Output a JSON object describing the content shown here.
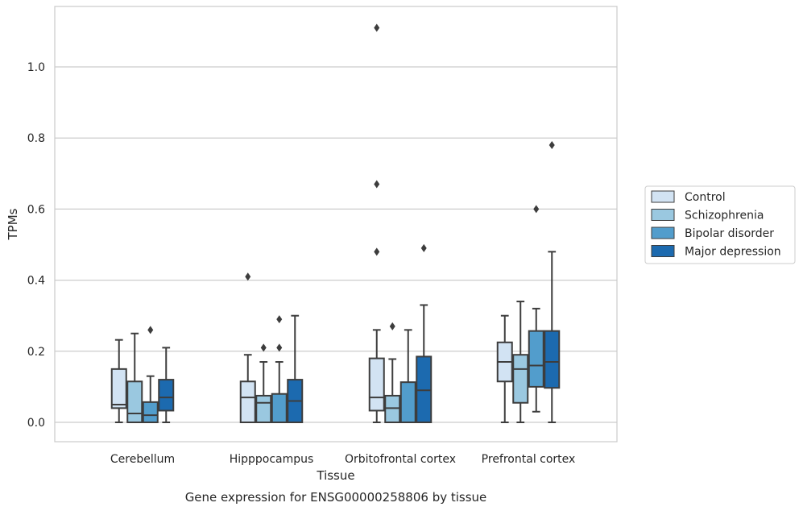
{
  "caption": "Gene expression for ENSG00000258806 by tissue",
  "chart_data": {
    "type": "box",
    "xlabel": "Tissue",
    "ylabel": "TPMs",
    "ylim": [
      -0.055,
      1.17
    ],
    "yticks": [
      0.0,
      0.2,
      0.4,
      0.6,
      0.8,
      1.0
    ],
    "ytick_labels": [
      "0.0",
      "0.2",
      "0.4",
      "0.6",
      "0.8",
      "1.0"
    ],
    "grid": "horizontal",
    "legend_position": "right",
    "categories": [
      "Cerebellum",
      "Hipppocampus",
      "Orbitofrontal cortex",
      "Prefrontal cortex"
    ],
    "series": [
      {
        "name": "Control",
        "color": "#d2e3f3",
        "boxes": [
          {
            "whisker_low": 0.0,
            "q1": 0.04,
            "median": 0.05,
            "q3": 0.15,
            "whisker_high": 0.232,
            "outliers": []
          },
          {
            "whisker_low": 0.0,
            "q1": 0.0,
            "median": 0.07,
            "q3": 0.115,
            "whisker_high": 0.19,
            "outliers": [
              0.41
            ]
          },
          {
            "whisker_low": 0.0,
            "q1": 0.033,
            "median": 0.07,
            "q3": 0.18,
            "whisker_high": 0.26,
            "outliers": [
              0.48,
              0.67,
              1.11
            ]
          },
          {
            "whisker_low": 0.0,
            "q1": 0.115,
            "median": 0.17,
            "q3": 0.225,
            "whisker_high": 0.3,
            "outliers": []
          }
        ]
      },
      {
        "name": "Schizophrenia",
        "color": "#9ac8e0",
        "boxes": [
          {
            "whisker_low": 0.0,
            "q1": 0.0,
            "median": 0.025,
            "q3": 0.115,
            "whisker_high": 0.25,
            "outliers": []
          },
          {
            "whisker_low": 0.0,
            "q1": 0.0,
            "median": 0.055,
            "q3": 0.075,
            "whisker_high": 0.17,
            "outliers": [
              0.21
            ]
          },
          {
            "whisker_low": 0.0,
            "q1": 0.0,
            "median": 0.04,
            "q3": 0.075,
            "whisker_high": 0.178,
            "outliers": [
              0.27
            ]
          },
          {
            "whisker_low": 0.0,
            "q1": 0.055,
            "median": 0.15,
            "q3": 0.19,
            "whisker_high": 0.34,
            "outliers": []
          }
        ]
      },
      {
        "name": "Bipolar disorder",
        "color": "#529dcc",
        "boxes": [
          {
            "whisker_low": 0.0,
            "q1": 0.0,
            "median": 0.02,
            "q3": 0.057,
            "whisker_high": 0.13,
            "outliers": [
              0.26
            ]
          },
          {
            "whisker_low": 0.0,
            "q1": 0.0,
            "median": 0.0,
            "q3": 0.08,
            "whisker_high": 0.17,
            "outliers": [
              0.21,
              0.29
            ]
          },
          {
            "whisker_low": 0.0,
            "q1": 0.0,
            "median": 0.0,
            "q3": 0.113,
            "whisker_high": 0.26,
            "outliers": []
          },
          {
            "whisker_low": 0.03,
            "q1": 0.1,
            "median": 0.16,
            "q3": 0.257,
            "whisker_high": 0.32,
            "outliers": [
              0.6
            ]
          }
        ]
      },
      {
        "name": "Major depression",
        "color": "#1c6aaf",
        "boxes": [
          {
            "whisker_low": 0.0,
            "q1": 0.033,
            "median": 0.07,
            "q3": 0.12,
            "whisker_high": 0.21,
            "outliers": []
          },
          {
            "whisker_low": 0.0,
            "q1": 0.0,
            "median": 0.06,
            "q3": 0.12,
            "whisker_high": 0.3,
            "outliers": []
          },
          {
            "whisker_low": 0.0,
            "q1": 0.0,
            "median": 0.09,
            "q3": 0.185,
            "whisker_high": 0.33,
            "outliers": [
              0.49
            ]
          },
          {
            "whisker_low": 0.0,
            "q1": 0.097,
            "median": 0.17,
            "q3": 0.257,
            "whisker_high": 0.48,
            "outliers": [
              0.78
            ]
          }
        ]
      }
    ]
  }
}
